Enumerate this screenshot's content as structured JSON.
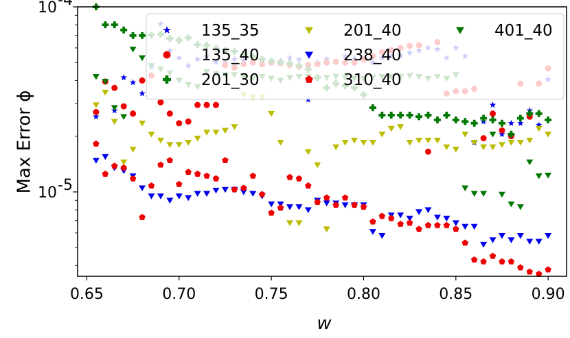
{
  "chart_data": {
    "type": "scatter",
    "title": "",
    "xlabel": "w",
    "ylabel": "Max Error ϕ",
    "y_scale": "log",
    "xlim": [
      0.645,
      0.91
    ],
    "ylim": [
      3.5e-06,
      0.0001
    ],
    "x_ticks": [
      0.65,
      0.7,
      0.75,
      0.8,
      0.85,
      0.9
    ],
    "x_tick_labels": [
      "0.65",
      "0.70",
      "0.75",
      "0.80",
      "0.85",
      "0.90"
    ],
    "y_ticks": [
      1e-05,
      0.0001
    ],
    "y_tick_labels": [
      "10^-5",
      "10^-4"
    ],
    "grid": false,
    "legend": {
      "placement": "top-right",
      "columns": 3
    },
    "series": [
      {
        "name": "135_35",
        "color": "#0000ee",
        "marker": "star",
        "x": [
          0.655,
          0.66,
          0.665,
          0.67,
          0.675,
          0.68,
          0.685,
          0.69,
          0.695,
          0.7,
          0.705,
          0.71,
          0.715,
          0.72,
          0.725,
          0.73,
          0.735,
          0.74,
          0.745,
          0.75,
          0.755,
          0.76,
          0.765,
          0.77,
          0.775,
          0.78,
          0.785,
          0.79,
          0.795,
          0.8,
          0.805,
          0.81,
          0.815,
          0.82,
          0.825,
          0.83,
          0.835,
          0.84,
          0.845,
          0.85,
          0.855,
          0.86,
          0.865,
          0.87,
          0.875,
          0.88,
          0.885,
          0.89,
          0.895,
          0.9
        ],
        "y": [
          2.55e-05,
          0.000103,
          2.75e-05,
          4.15e-05,
          3.9e-05,
          3.4e-05,
          4.75e-05,
          8.1e-05,
          5.8e-05,
          5.3e-05,
          4.8e-05,
          5.2e-05,
          5.4e-05,
          5.05e-05,
          5e-05,
          5.2e-05,
          5.15e-05,
          5.3e-05,
          5.2e-05,
          5e-05,
          5.1e-05,
          5.3e-05,
          5.2e-05,
          3.15e-05,
          5e-05,
          5.2e-05,
          5.1e-05,
          5.4e-05,
          5.25e-05,
          5.2e-05,
          5e-05,
          5.3e-05,
          5.4e-05,
          5.45e-05,
          5.65e-05,
          5.8e-05,
          6e-05,
          5.9e-05,
          5.3e-05,
          6e-05,
          5.4e-05,
          1.85e-05,
          2.4e-05,
          2.95e-05,
          2.05e-05,
          2.35e-05,
          2.35e-05,
          2.75e-05,
          2.3e-05,
          4.05e-05
        ]
      },
      {
        "name": "135_40",
        "color": "#ee0000",
        "marker": "circle",
        "x": [
          0.655,
          0.66,
          0.665,
          0.67,
          0.675,
          0.68,
          0.685,
          0.69,
          0.695,
          0.7,
          0.705,
          0.71,
          0.715,
          0.72,
          0.725,
          0.73,
          0.735,
          0.74,
          0.745,
          0.75,
          0.755,
          0.76,
          0.765,
          0.77,
          0.775,
          0.78,
          0.785,
          0.79,
          0.795,
          0.8,
          0.805,
          0.81,
          0.815,
          0.82,
          0.825,
          0.83,
          0.835,
          0.84,
          0.845,
          0.85,
          0.855,
          0.86,
          0.865,
          0.87,
          0.875,
          0.88,
          0.885,
          0.89,
          0.895,
          0.9
        ],
        "y": [
          2.7e-05,
          3.95e-05,
          3.65e-05,
          2.9e-05,
          2.65e-05,
          4e-05,
          4.25e-05,
          3.05e-05,
          2.65e-05,
          2.35e-05,
          2.4e-05,
          2.95e-05,
          2.95e-05,
          2.95e-05,
          4.85e-05,
          4.7e-05,
          4.9e-05,
          5e-05,
          4.9e-05,
          5e-05,
          4.95e-05,
          4.85e-05,
          4.75e-05,
          4.85e-05,
          4.9e-05,
          5e-05,
          5.05e-05,
          5e-05,
          5e-05,
          5.2e-05,
          5.4e-05,
          5.7e-05,
          5.85e-05,
          6e-05,
          6.15e-05,
          6.2e-05,
          1.65e-05,
          6.45e-05,
          3.4e-05,
          3.5e-05,
          3.5e-05,
          3.6e-05,
          1.95e-05,
          2.65e-05,
          2.15e-05,
          2e-05,
          3.85e-05,
          2.55e-05,
          3.85e-05,
          4.65e-05
        ]
      },
      {
        "name": "201_30",
        "color": "#007700",
        "marker": "plus",
        "x": [
          0.655,
          0.66,
          0.665,
          0.67,
          0.675,
          0.68,
          0.685,
          0.69,
          0.695,
          0.7,
          0.705,
          0.71,
          0.715,
          0.72,
          0.725,
          0.73,
          0.735,
          0.74,
          0.745,
          0.75,
          0.755,
          0.76,
          0.765,
          0.77,
          0.775,
          0.78,
          0.785,
          0.79,
          0.795,
          0.8,
          0.805,
          0.81,
          0.815,
          0.82,
          0.825,
          0.83,
          0.835,
          0.84,
          0.845,
          0.85,
          0.855,
          0.86,
          0.865,
          0.87,
          0.875,
          0.88,
          0.885,
          0.89,
          0.895,
          0.9
        ],
        "y": [
          0.0001,
          8e-05,
          8e-05,
          7.5e-05,
          7e-05,
          7e-05,
          7.05e-05,
          7.1e-05,
          6.75e-05,
          6.6e-05,
          6.8e-05,
          6.25e-05,
          6.2e-05,
          5.95e-05,
          5.8e-05,
          5.75e-05,
          5.55e-05,
          5.4e-05,
          5.2e-05,
          5.1e-05,
          5e-05,
          4.95e-05,
          4.8e-05,
          4.6e-05,
          4.15e-05,
          3.65e-05,
          3.85e-05,
          3.75e-05,
          3.65e-05,
          3.35e-05,
          2.85e-05,
          2.6e-05,
          2.6e-05,
          2.6e-05,
          2.6e-05,
          2.55e-05,
          2.6e-05,
          2.45e-05,
          2.6e-05,
          2.45e-05,
          2.4e-05,
          2.35e-05,
          2.5e-05,
          2.45e-05,
          2.35e-05,
          2.05e-05,
          2.5e-05,
          2.65e-05,
          2.65e-05,
          2.45e-05
        ]
      },
      {
        "name": "201_40",
        "color": "#bbbb00",
        "marker": "triangle-down",
        "x": [
          0.655,
          0.66,
          0.665,
          0.67,
          0.675,
          0.68,
          0.685,
          0.69,
          0.695,
          0.7,
          0.705,
          0.71,
          0.715,
          0.72,
          0.725,
          0.73,
          0.735,
          0.74,
          0.745,
          0.75,
          0.755,
          0.76,
          0.765,
          0.77,
          0.775,
          0.78,
          0.785,
          0.79,
          0.795,
          0.8,
          0.805,
          0.81,
          0.815,
          0.82,
          0.825,
          0.83,
          0.835,
          0.84,
          0.845,
          0.85,
          0.855,
          0.86,
          0.865,
          0.87,
          0.875,
          0.88,
          0.885,
          0.89,
          0.895,
          0.9
        ],
        "y": [
          2.95e-05,
          3.45e-05,
          2.4e-05,
          1.45e-05,
          1.7e-05,
          2.35e-05,
          2.05e-05,
          1.9e-05,
          1.8e-05,
          1.8e-05,
          1.85e-05,
          1.95e-05,
          2.1e-05,
          2.1e-05,
          2.15e-05,
          2.25e-05,
          3.35e-05,
          3.25e-05,
          3.25e-05,
          2.65e-05,
          1.85e-05,
          6.8e-06,
          6.8e-06,
          1.65e-05,
          1.4e-05,
          6.3e-06,
          1.75e-05,
          1.85e-05,
          1.9e-05,
          1.85e-05,
          1.85e-05,
          2.05e-05,
          2.2e-05,
          2.25e-05,
          1.85e-05,
          1.9e-05,
          1.9e-05,
          1.9e-05,
          1.75e-05,
          1.7e-05,
          2.05e-05,
          1.85e-05,
          1.75e-05,
          1.75e-05,
          1.8e-05,
          1.85e-05,
          1.85e-05,
          1.9e-05,
          2.2e-05,
          2.05e-05
        ]
      },
      {
        "name": "238_40",
        "color": "#0000ee",
        "marker": "triangle-down",
        "x": [
          0.655,
          0.66,
          0.665,
          0.67,
          0.675,
          0.68,
          0.685,
          0.69,
          0.695,
          0.7,
          0.705,
          0.71,
          0.715,
          0.72,
          0.725,
          0.73,
          0.735,
          0.74,
          0.745,
          0.75,
          0.755,
          0.76,
          0.765,
          0.77,
          0.775,
          0.78,
          0.785,
          0.79,
          0.795,
          0.8,
          0.805,
          0.81,
          0.815,
          0.82,
          0.825,
          0.83,
          0.835,
          0.84,
          0.845,
          0.85,
          0.855,
          0.86,
          0.865,
          0.87,
          0.875,
          0.88,
          0.885,
          0.89,
          0.895,
          0.9
        ],
        "y": [
          1.48e-05,
          1.55e-05,
          1.35e-05,
          1.3e-05,
          1.22e-05,
          1.05e-05,
          9.5e-06,
          9.5e-06,
          9e-06,
          9.5e-06,
          9.3e-06,
          9.8e-06,
          9.8e-06,
          1.02e-05,
          1.03e-05,
          1.03e-05,
          1e-05,
          9.8e-06,
          9.5e-06,
          8.6e-06,
          8.6e-06,
          8.3e-06,
          8.3e-06,
          8e-06,
          9e-06,
          8.7e-06,
          8.7e-06,
          8.5e-06,
          8.5e-06,
          8.5e-06,
          6.1e-06,
          5.8e-06,
          7.5e-06,
          7.5e-06,
          7.2e-06,
          7.8e-06,
          8e-06,
          7.3e-06,
          7.2e-06,
          6.8e-06,
          6.5e-06,
          6.5e-06,
          5.2e-06,
          5.5e-06,
          5.8e-06,
          5.5e-06,
          5.8e-06,
          5.4e-06,
          5.4e-06,
          5.8e-06
        ]
      },
      {
        "name": "310_40",
        "color": "#ee0000",
        "marker": "pentagon",
        "x": [
          0.655,
          0.66,
          0.665,
          0.67,
          0.675,
          0.68,
          0.685,
          0.69,
          0.695,
          0.7,
          0.705,
          0.71,
          0.715,
          0.72,
          0.725,
          0.73,
          0.735,
          0.74,
          0.745,
          0.75,
          0.755,
          0.76,
          0.765,
          0.77,
          0.775,
          0.78,
          0.785,
          0.79,
          0.795,
          0.8,
          0.805,
          0.81,
          0.815,
          0.82,
          0.825,
          0.83,
          0.835,
          0.84,
          0.845,
          0.85,
          0.855,
          0.86,
          0.865,
          0.87,
          0.875,
          0.88,
          0.885,
          0.89,
          0.895,
          0.9
        ],
        "y": [
          1.82e-05,
          1.25e-05,
          1.38e-05,
          1.35e-05,
          1.18e-05,
          7.3e-06,
          1.08e-05,
          1.4e-05,
          1.48e-05,
          1.1e-05,
          1.28e-05,
          1.25e-05,
          1.22e-05,
          1.18e-05,
          1.48e-05,
          1.03e-05,
          1.05e-05,
          1.22e-05,
          9.7e-06,
          7.7e-06,
          8.2e-06,
          1.2e-05,
          1.18e-05,
          1.08e-05,
          8.8e-06,
          9.3e-06,
          8.5e-06,
          9.3e-06,
          8.5e-06,
          8.3e-06,
          6.9e-06,
          7.4e-06,
          7.2e-06,
          6.7e-06,
          6.8e-06,
          6.3e-06,
          6.6e-06,
          6.6e-06,
          6.6e-06,
          6.3e-06,
          5.3e-06,
          4.3e-06,
          4.2e-06,
          4.5e-06,
          4.2e-06,
          4.2e-06,
          3.9e-06,
          3.7e-06,
          3.6e-06,
          3.8e-06
        ]
      },
      {
        "name": "401_40",
        "color": "#007700",
        "marker": "triangle-down",
        "x": [
          0.655,
          0.66,
          0.665,
          0.67,
          0.675,
          0.68,
          0.685,
          0.69,
          0.695,
          0.7,
          0.705,
          0.71,
          0.715,
          0.72,
          0.725,
          0.73,
          0.735,
          0.74,
          0.745,
          0.75,
          0.755,
          0.76,
          0.765,
          0.77,
          0.775,
          0.78,
          0.785,
          0.79,
          0.795,
          0.8,
          0.805,
          0.81,
          0.815,
          0.82,
          0.825,
          0.83,
          0.835,
          0.84,
          0.845,
          0.85,
          0.855,
          0.86,
          0.865,
          0.87,
          0.875,
          0.88,
          0.885,
          0.89,
          0.895,
          0.9
        ],
        "y": [
          4.2e-05,
          3.95e-05,
          2.85e-05,
          2.55e-05,
          5.9e-05,
          5.3e-05,
          4.8e-05,
          4.6e-05,
          4.4e-05,
          4e-05,
          3.8e-05,
          3.7e-05,
          4.45e-05,
          4.35e-05,
          4.3e-05,
          4.3e-05,
          4.2e-05,
          4.1e-05,
          4.2e-05,
          4.1e-05,
          4e-05,
          4.15e-05,
          4.2e-05,
          4.2e-05,
          4.1e-05,
          4.15e-05,
          4.2e-05,
          4.15e-05,
          4.1e-05,
          4.1e-05,
          4.15e-05,
          4.2e-05,
          4.2e-05,
          4.2e-05,
          4.25e-05,
          4.2e-05,
          4.1e-05,
          4.2e-05,
          4.1e-05,
          4.3e-05,
          1.05e-05,
          9.8e-06,
          9.8e-06,
          2.05e-05,
          9.7e-06,
          8.6e-06,
          8.3e-06,
          1.45e-05,
          1.22e-05,
          1.23e-05
        ]
      }
    ]
  }
}
